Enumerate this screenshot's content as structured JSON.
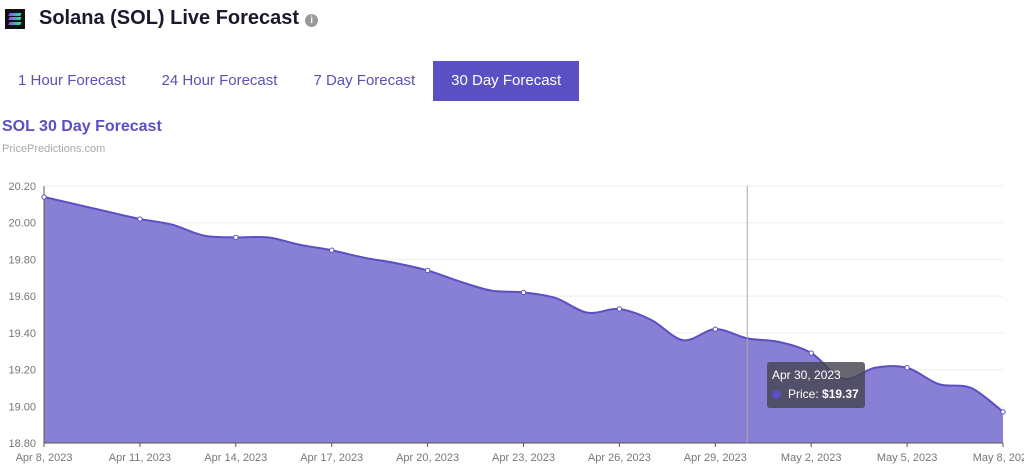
{
  "header": {
    "title": "Solana (SOL) Live Forecast",
    "info_icon": "info-icon"
  },
  "tabs": [
    {
      "label": "1 Hour Forecast"
    },
    {
      "label": "24 Hour Forecast"
    },
    {
      "label": "7 Day Forecast"
    },
    {
      "label": "30 Day Forecast",
      "active": true
    }
  ],
  "chart_data": {
    "type": "area",
    "title": "SOL 30 Day Forecast",
    "subtitle": "PricePredictions.com",
    "ylim": [
      18.8,
      20.2
    ],
    "yticks": [
      "20.20",
      "20.00",
      "19.80",
      "19.60",
      "19.40",
      "19.20",
      "19.00",
      "18.80"
    ],
    "xticks": [
      "Apr 8, 2023",
      "Apr 11, 2023",
      "Apr 14, 2023",
      "Apr 17, 2023",
      "Apr 20, 2023",
      "Apr 23, 2023",
      "Apr 26, 2023",
      "Apr 29, 2023",
      "May 2, 2023",
      "May 5, 2023",
      "May 8, 2023"
    ],
    "x": [
      "Apr 8",
      "Apr 9",
      "Apr 10",
      "Apr 11",
      "Apr 12",
      "Apr 13",
      "Apr 14",
      "Apr 15",
      "Apr 16",
      "Apr 17",
      "Apr 18",
      "Apr 19",
      "Apr 20",
      "Apr 21",
      "Apr 22",
      "Apr 23",
      "Apr 24",
      "Apr 25",
      "Apr 26",
      "Apr 27",
      "Apr 28",
      "Apr 29",
      "Apr 30",
      "May 1",
      "May 2",
      "May 3",
      "May 4",
      "May 5",
      "May 6",
      "May 7",
      "May 8"
    ],
    "series": [
      {
        "name": "Price",
        "values": [
          20.14,
          20.1,
          20.06,
          20.02,
          19.99,
          19.93,
          19.92,
          19.92,
          19.88,
          19.85,
          19.81,
          19.78,
          19.74,
          19.68,
          19.63,
          19.62,
          19.59,
          19.51,
          19.53,
          19.47,
          19.36,
          19.42,
          19.37,
          19.35,
          19.29,
          19.15,
          19.21,
          19.21,
          19.12,
          19.1,
          18.97
        ]
      }
    ],
    "grid": true,
    "color": "#5b4fc4",
    "tooltip": {
      "date": "Apr 30, 2023",
      "label": "Price:",
      "value": "$19.37"
    }
  }
}
